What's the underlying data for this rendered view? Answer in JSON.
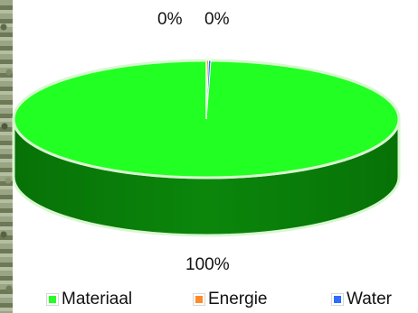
{
  "chart_data": {
    "type": "pie",
    "title": "",
    "categories": [
      "Materiaal",
      "Energie",
      "Water"
    ],
    "values": [
      100,
      0,
      0
    ],
    "data_labels": [
      "100%",
      "0%",
      "0%"
    ],
    "colors": {
      "Materiaal": "#22ff22",
      "Energie": "#ff8a2a",
      "Water": "#2f6cff"
    },
    "side_color": "#0a7d0a",
    "legend_position": "bottom",
    "legend": [
      {
        "label": "Materiaal",
        "color": "#22ff22"
      },
      {
        "label": "Energie",
        "color": "#ff8a2a"
      },
      {
        "label": "Water",
        "color": "#2f6cff"
      }
    ]
  }
}
